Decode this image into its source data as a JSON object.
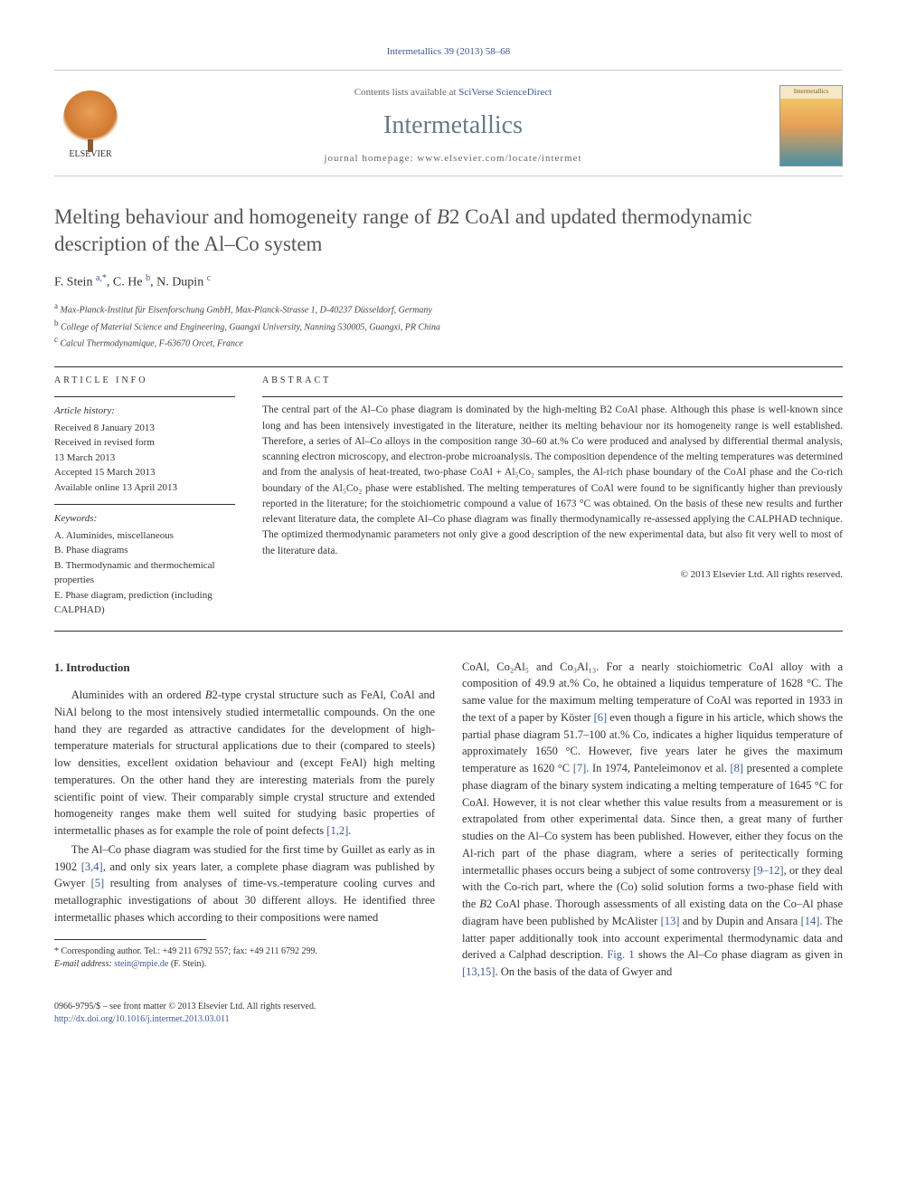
{
  "header": {
    "citation": "Intermetallics 39 (2013) 58–68",
    "contents_prefix": "Contents lists available at ",
    "contents_link": "SciVerse ScienceDirect",
    "journal_name": "Intermetallics",
    "homepage_prefix": "journal homepage: ",
    "homepage_url": "www.elsevier.com/locate/intermet",
    "publisher_name": "ELSEVIER",
    "cover_label": "Intermetallics"
  },
  "article": {
    "title_html": "Melting behaviour and homogeneity range of <span class='italic'>B</span>2 CoAl and updated thermodynamic description of the Al–Co system",
    "authors_html": "F. Stein <sup>a,*</sup>, C. He <sup>b</sup>, N. Dupin <sup>c</sup>",
    "affiliations": [
      {
        "sup": "a",
        "text": "Max-Planck-Institut für Eisenforschung GmbH, Max-Planck-Strasse 1, D-40237 Düsseldorf, Germany"
      },
      {
        "sup": "b",
        "text": "College of Material Science and Engineering, Guangxi University, Nanning 530005, Guangxi, PR China"
      },
      {
        "sup": "c",
        "text": "Calcul Thermodynamique, F-63670 Orcet, France"
      }
    ]
  },
  "info": {
    "section_label": "ARTICLE INFO",
    "history_head": "Article history:",
    "history_body": "Received 8 January 2013\nReceived in revised form\n13 March 2013\nAccepted 15 March 2013\nAvailable online 13 April 2013",
    "keywords_head": "Keywords:",
    "keywords_body": "A. Aluminides, miscellaneous\nB. Phase diagrams\nB. Thermodynamic and thermochemical properties\nE. Phase diagram, prediction (including CALPHAD)"
  },
  "abstract": {
    "section_label": "ABSTRACT",
    "text": "The central part of the Al–Co phase diagram is dominated by the high-melting B2 CoAl phase. Although this phase is well-known since long and has been intensively investigated in the literature, neither its melting behaviour nor its homogeneity range is well established. Therefore, a series of Al–Co alloys in the composition range 30–60 at.% Co were produced and analysed by differential thermal analysis, scanning electron microscopy, and electron-probe microanalysis. The composition dependence of the melting temperatures was determined and from the analysis of heat-treated, two-phase CoAl + Al₅Co₂ samples, the Al-rich phase boundary of the CoAl phase and the Co-rich boundary of the Al₅Co₂ phase were established. The melting temperatures of CoAl were found to be significantly higher than previously reported in the literature; for the stoichiometric compound a value of 1673 °C was obtained. On the basis of these new results and further relevant literature data, the complete Al–Co phase diagram was finally thermodynamically re-assessed applying the CALPHAD technique. The optimized thermodynamic parameters not only give a good description of the new experimental data, but also fit very well to most of the literature data.",
    "copyright": "© 2013 Elsevier Ltd. All rights reserved."
  },
  "body": {
    "section_heading": "1. Introduction",
    "p1_html": "Aluminides with an ordered <span class='italic'>B</span>2-type crystal structure such as FeAl, CoAl and NiAl belong to the most intensively studied intermetallic compounds. On the one hand they are regarded as attractive candidates for the development of high-temperature materials for structural applications due to their (compared to steels) low densities, excellent oxidation behaviour and (except FeAl) high melting temperatures. On the other hand they are interesting materials from the purely scientific point of view. Their comparably simple crystal structure and extended homogeneity ranges make them well suited for studying basic properties of intermetallic phases as for example the role of point defects <a class='ref-link' href='#'>[1,2]</a>.",
    "p2_html": "The Al–Co phase diagram was studied for the first time by Guillet as early as in 1902 <a class='ref-link' href='#'>[3,4]</a>, and only six years later, a complete phase diagram was published by Gwyer <a class='ref-link' href='#'>[5]</a> resulting from analyses of time-vs.-temperature cooling curves and metallographic investigations of about 30 different alloys. He identified three intermetallic phases which according to their compositions were named",
    "p3_html": "CoAl, Co₂Al₅ and Co₃Al₁₃. For a nearly stoichiometric CoAl alloy with a composition of 49.9 at.% Co, he obtained a liquidus temperature of 1628 °C. The same value for the maximum melting temperature of CoAl was reported in 1933 in the text of a paper by Köster <a class='ref-link' href='#'>[6]</a> even though a figure in his article, which shows the partial phase diagram 51.7–100 at.% Co, indicates a higher liquidus temperature of approximately 1650 °C. However, five years later he gives the maximum temperature as 1620 °C <a class='ref-link' href='#'>[7]</a>. In 1974, Panteleimonov et al. <a class='ref-link' href='#'>[8]</a> presented a complete phase diagram of the binary system indicating a melting temperature of 1645 °C for CoAl. However, it is not clear whether this value results from a measurement or is extrapolated from other experimental data. Since then, a great many of further studies on the Al–Co system has been published. However, either they focus on the Al-rich part of the phase diagram, where a series of peritectically forming intermetallic phases occurs being a subject of some controversy <a class='ref-link' href='#'>[9–12]</a>, or they deal with the Co-rich part, where the (Co) solid solution forms a two-phase field with the <span class='italic'>B</span>2 CoAl phase. Thorough assessments of all existing data on the Co–Al phase diagram have been published by McAlister <a class='ref-link' href='#'>[13]</a> and by Dupin and Ansara <a class='ref-link' href='#'>[14]</a>. The latter paper additionally took into account experimental thermodynamic data and derived a Calphad description. <a class='ref-link' href='#'>Fig. 1</a> shows the Al–Co phase diagram as given in <a class='ref-link' href='#'>[13,15]</a>. On the basis of the data of Gwyer and"
  },
  "footnote": {
    "corr_label": "* Corresponding author. Tel.: +49 211 6792 557; fax: +49 211 6792 299.",
    "email_label": "E-mail address:",
    "email": "stein@mpie.de",
    "email_who": "(F. Stein)."
  },
  "footer": {
    "issn_line": "0966-9795/$ – see front matter © 2013 Elsevier Ltd. All rights reserved.",
    "doi_url": "http://dx.doi.org/10.1016/j.intermet.2013.03.011"
  },
  "colors": {
    "link": "#3b5998",
    "journal_title": "#667a8a",
    "text": "#333333"
  }
}
